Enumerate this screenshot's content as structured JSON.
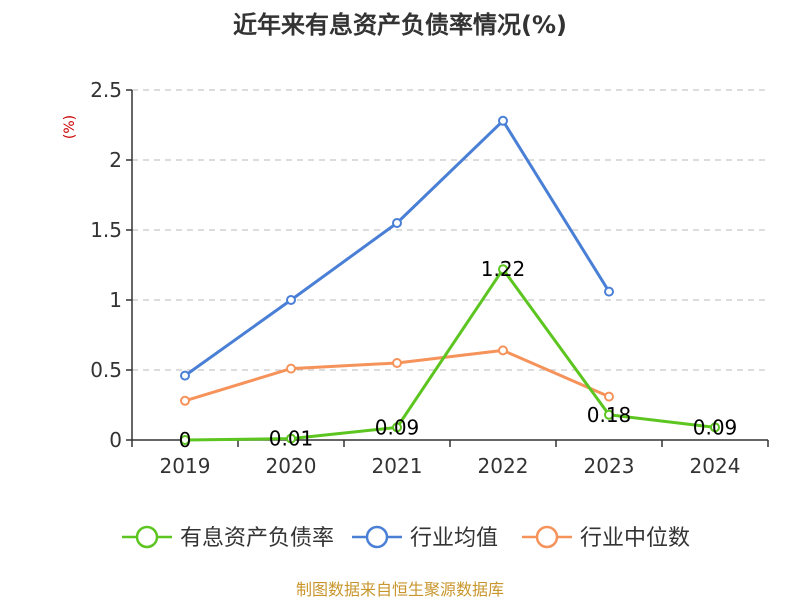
{
  "chart_data": {
    "type": "line",
    "title": "近年来有息资产负债率情况(%)",
    "ylabel": "(%)",
    "xlabel": "",
    "categories": [
      "2019",
      "2020",
      "2021",
      "2022",
      "2023",
      "2024"
    ],
    "ylim": [
      0,
      2.5
    ],
    "yticks": [
      "0",
      "0.5",
      "1",
      "1.5",
      "2",
      "2.5"
    ],
    "grid": "horizontal dashed",
    "legend": "bottom",
    "series": [
      {
        "name": "有息资产负债率",
        "color": "#5cc520",
        "values": [
          0,
          0.01,
          0.09,
          1.22,
          0.18,
          0.09
        ],
        "labels": [
          "0",
          "0.01",
          "0.09",
          "1.22",
          "0.18",
          "0.09"
        ]
      },
      {
        "name": "行业均值",
        "color": "#4a7fd6",
        "values": [
          0.46,
          1.0,
          1.55,
          2.28,
          1.06,
          null
        ]
      },
      {
        "name": "行业中位数",
        "color": "#f5935a",
        "values": [
          0.28,
          0.51,
          0.55,
          0.64,
          0.31,
          null
        ]
      }
    ]
  },
  "source": "制图数据来自恒生聚源数据库"
}
